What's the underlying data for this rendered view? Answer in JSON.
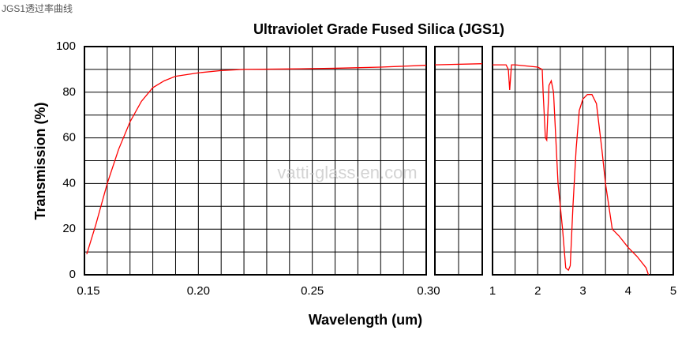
{
  "caption": "JGS1透过率曲线",
  "watermark": "vatti-glass.en.com",
  "chart_data": {
    "type": "line",
    "title": "Ultraviolet Grade Fused Silica (JGS1)",
    "xlabel": "Wavelength (um)",
    "ylabel": "Transmission (%)",
    "ylim": [
      0,
      100
    ],
    "yticks": [
      0,
      20,
      40,
      60,
      80,
      100
    ],
    "yminor_ticks": [
      10,
      30,
      50,
      70,
      90
    ],
    "grid": true,
    "panels": [
      {
        "xlim": [
          0.15,
          0.3
        ],
        "xticks": [
          0.15,
          {
            "value": 0.2,
            "label": "0.20"
          },
          0.25,
          {
            "value": 0.3,
            "label": "0.30"
          }
        ],
        "xminor_ticks": [
          0.16,
          0.17,
          0.18,
          0.19,
          0.21,
          0.22,
          0.23,
          0.24,
          0.26,
          0.27,
          0.28,
          0.29
        ],
        "series": [
          {
            "color": "#ff0000",
            "x": [
              0.151,
              0.155,
              0.16,
              0.165,
              0.17,
              0.175,
              0.18,
              0.185,
              0.19,
              0.2,
              0.21,
              0.22,
              0.24,
              0.26,
              0.28,
              0.3
            ],
            "values": [
              9,
              22,
              40,
              55,
              67,
              76,
              82,
              85,
              87,
              88.5,
              89.5,
              90,
              90.2,
              90.5,
              91,
              91.8
            ]
          }
        ]
      },
      {
        "xlim": [
          0.3,
          0.32
        ],
        "xticks": [],
        "xminor_ticks": [
          0.31
        ],
        "series": [
          {
            "color": "#ff0000",
            "x": [
              0.3,
              0.32
            ],
            "values": [
              92,
              92.5
            ]
          }
        ]
      },
      {
        "xlim": [
          1,
          5
        ],
        "xticks": [
          1,
          2,
          3,
          4,
          5
        ],
        "xminor_ticks": [
          1.5,
          2.5,
          3.5,
          4.5
        ],
        "series": [
          {
            "color": "#ff0000",
            "x": [
              1.0,
              1.3,
              1.35,
              1.38,
              1.42,
              1.5,
              2.0,
              2.1,
              2.12,
              2.17,
              2.2,
              2.25,
              2.3,
              2.35,
              2.4,
              2.45,
              2.55,
              2.62,
              2.68,
              2.72,
              2.78,
              2.85,
              2.92,
              3.0,
              3.1,
              3.2,
              3.3,
              3.42,
              3.5,
              3.65,
              3.8,
              4.0,
              4.2,
              4.4,
              4.45
            ],
            "values": [
              92,
              92,
              90,
              81,
              92,
              92,
              91,
              90,
              80,
              60,
              59,
              83,
              85,
              80,
              60,
              40,
              20,
              3,
              2,
              4,
              30,
              55,
              72,
              77,
              79,
              79,
              75,
              55,
              40,
              20,
              17,
              12,
              8,
              3,
              0
            ]
          }
        ]
      }
    ]
  }
}
